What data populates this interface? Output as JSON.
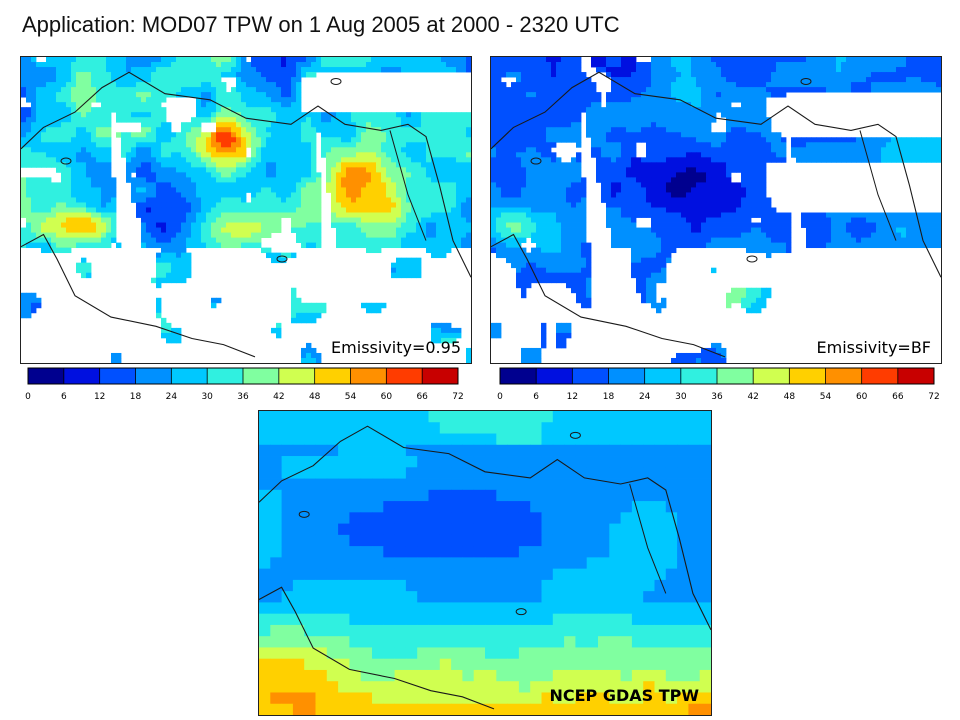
{
  "title": "Application: MOD07 TPW on 1 Aug 2005 at 2000 - 2320 UTC",
  "panels": {
    "left_label": "Emissivity=0.95",
    "right_label": "Emissivity=BF",
    "bottom_label": "NCEP GDAS TPW"
  },
  "colorbar": {
    "ticks": [
      "0",
      "6",
      "12",
      "18",
      "24",
      "30",
      "36",
      "42",
      "48",
      "54",
      "60",
      "66",
      "72"
    ],
    "colors": [
      "#00008f",
      "#0010e0",
      "#0050ff",
      "#0090ff",
      "#00c8ff",
      "#30f0e0",
      "#80ffa0",
      "#d0ff50",
      "#ffd000",
      "#ff9000",
      "#ff3c00",
      "#c80000"
    ]
  }
}
